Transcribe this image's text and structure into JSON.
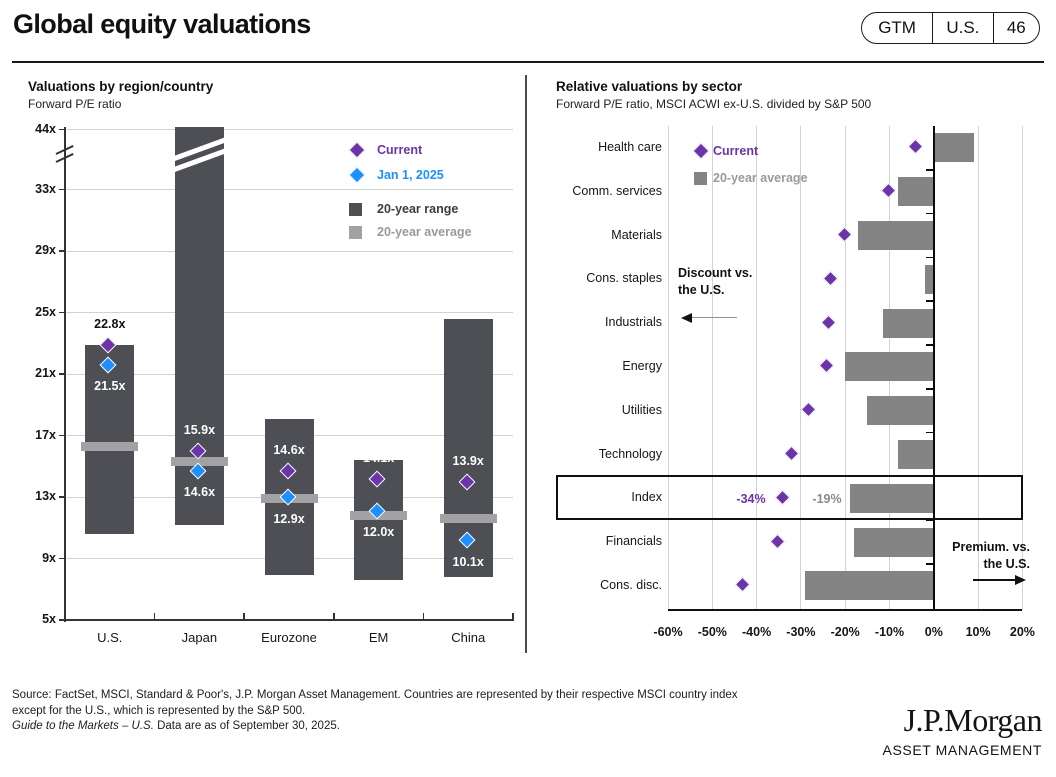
{
  "header": {
    "title": "Global equity valuations",
    "badge": [
      "GTM",
      "U.S.",
      "46"
    ]
  },
  "colors": {
    "current_purple": "#6b34a8",
    "jan1_blue": "#1e8fff",
    "range_bar": "#4d4f55",
    "average_band": "#a2a2a4",
    "sector_bar": "#848484",
    "gridline": "#d2d2d2",
    "axis_dark": "#333333",
    "zero_line": "#0a0a0a",
    "label_white": "#ffffff",
    "label_dark": "#111111"
  },
  "chart_data": [
    {
      "id": "regions",
      "type": "range-bar",
      "title": "Valuations by region/country",
      "subtitle": "Forward P/E ratio",
      "y_unit_suffix": "x",
      "y_ticks": [
        44,
        33,
        29,
        25,
        21,
        17,
        13,
        9,
        5
      ],
      "axis_break_between": [
        33,
        44
      ],
      "ylim": [
        5,
        44
      ],
      "grid": true,
      "legend_position": "top-right-inside",
      "categories": [
        "U.S.",
        "Japan",
        "Eurozone",
        "EM",
        "China"
      ],
      "series": [
        {
          "name": "Current",
          "role": "current",
          "values": [
            22.8,
            15.9,
            14.6,
            14.1,
            13.9
          ],
          "label_outside": [
            true,
            false,
            false,
            false,
            false
          ]
        },
        {
          "name": "Jan 1, 2025",
          "role": "jan1",
          "values": [
            21.5,
            14.6,
            12.9,
            12.0,
            10.1
          ]
        },
        {
          "name": "20-year range",
          "role": "range",
          "low": [
            10.6,
            11.2,
            7.9,
            7.6,
            7.8
          ],
          "high": [
            22.9,
            null,
            18.1,
            15.4,
            24.6
          ],
          "clipped_high": [
            false,
            true,
            false,
            false,
            false
          ]
        },
        {
          "name": "20-year average",
          "role": "average",
          "values": [
            16.3,
            15.3,
            12.9,
            11.8,
            11.6
          ]
        }
      ]
    },
    {
      "id": "sectors",
      "type": "bar-h",
      "title": "Relative valuations by sector",
      "subtitle": "Forward P/E ratio, MSCI ACWI ex-U.S. divided by S&P 500",
      "x_unit_suffix": "%",
      "x_ticks": [
        -60,
        -50,
        -40,
        -30,
        -20,
        -10,
        0,
        10,
        20
      ],
      "xlim": [
        -60,
        20
      ],
      "grid": true,
      "categories": [
        "Health care",
        "Comm. services",
        "Materials",
        "Cons. staples",
        "Industrials",
        "Energy",
        "Utilities",
        "Technology",
        "Index",
        "Financials",
        "Cons. disc."
      ],
      "series": [
        {
          "name": "Current",
          "role": "current",
          "values": [
            -4,
            -10,
            -20,
            -23,
            -23.5,
            -24,
            -28,
            -32,
            -34,
            -35,
            -43
          ]
        },
        {
          "name": "20-year average",
          "role": "average",
          "values": [
            9,
            -8,
            -17,
            -2,
            -11.5,
            -20,
            -15,
            -8,
            -19,
            -18,
            -29
          ]
        }
      ],
      "highlight_row": "Index",
      "highlight_labels": {
        "current": "-34%",
        "average": "-19%"
      },
      "annotations": {
        "discount_line1": "Discount vs.",
        "discount_line2": "the U.S.",
        "premium_line1": "Premium. vs.",
        "premium_line2": "the U.S."
      }
    }
  ],
  "footer": {
    "source_line1": "Source: FactSet, MSCI, Standard & Poor's, J.P. Morgan Asset Management. Countries are represented by their respective MSCI country index",
    "source_line2": "except for the U.S., which is represented by the S&P 500.",
    "gtm_italic": "Guide to the Markets – U.S.",
    "gtm_rest": " Data are as of September 30, 2025.",
    "logo": "J.P.Morgan",
    "logo_sub": "ASSET MANAGEMENT"
  }
}
